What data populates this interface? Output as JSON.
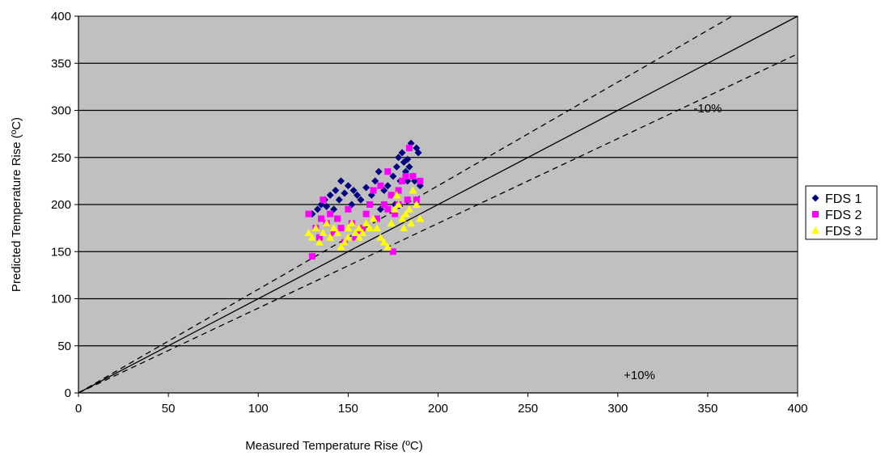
{
  "chart_data": {
    "type": "scatter",
    "xlabel": "Measured Temperature Rise (ºC)",
    "ylabel": "Predicted Temperature Rise (ºC)",
    "xlim": [
      0,
      400
    ],
    "ylim": [
      0,
      400
    ],
    "xticks": [
      0,
      50,
      100,
      150,
      200,
      250,
      300,
      350,
      400
    ],
    "yticks": [
      0,
      50,
      100,
      150,
      200,
      250,
      300,
      350,
      400
    ],
    "grid": "horizontal",
    "legend_position": "right",
    "plot_background": "#c0c0c0",
    "reference_lines": [
      {
        "label": "",
        "slope": 1.0,
        "style": "solid"
      },
      {
        "label": "+10%",
        "slope": 1.1,
        "style": "dashed"
      },
      {
        "label": "-10%",
        "slope": 0.9,
        "style": "dashed"
      }
    ],
    "series": [
      {
        "name": "FDS 1",
        "color": "#000080",
        "marker": "diamond",
        "points": [
          [
            130,
            190
          ],
          [
            133,
            195
          ],
          [
            135,
            200
          ],
          [
            137,
            205
          ],
          [
            138,
            198
          ],
          [
            140,
            210
          ],
          [
            142,
            195
          ],
          [
            143,
            215
          ],
          [
            145,
            205
          ],
          [
            146,
            225
          ],
          [
            148,
            212
          ],
          [
            150,
            220
          ],
          [
            152,
            200
          ],
          [
            155,
            210
          ],
          [
            157,
            205
          ],
          [
            160,
            218
          ],
          [
            163,
            210
          ],
          [
            165,
            225
          ],
          [
            167,
            235
          ],
          [
            170,
            215
          ],
          [
            172,
            220
          ],
          [
            174,
            210
          ],
          [
            175,
            230
          ],
          [
            177,
            240
          ],
          [
            178,
            250
          ],
          [
            180,
            255
          ],
          [
            181,
            245
          ],
          [
            182,
            235
          ],
          [
            183,
            248
          ],
          [
            184,
            240
          ],
          [
            185,
            265
          ],
          [
            186,
            230
          ],
          [
            187,
            225
          ],
          [
            188,
            260
          ],
          [
            189,
            255
          ],
          [
            190,
            220
          ],
          [
            176,
            200
          ],
          [
            179,
            225
          ],
          [
            183,
            225
          ],
          [
            170,
            200
          ],
          [
            168,
            195
          ],
          [
            153,
            215
          ]
        ]
      },
      {
        "name": "FDS 2",
        "color": "#ff00ff",
        "marker": "square",
        "points": [
          [
            128,
            190
          ],
          [
            130,
            145
          ],
          [
            132,
            175
          ],
          [
            134,
            165
          ],
          [
            135,
            185
          ],
          [
            136,
            205
          ],
          [
            138,
            180
          ],
          [
            140,
            190
          ],
          [
            142,
            170
          ],
          [
            144,
            185
          ],
          [
            146,
            175
          ],
          [
            148,
            160
          ],
          [
            150,
            195
          ],
          [
            152,
            180
          ],
          [
            154,
            165
          ],
          [
            156,
            170
          ],
          [
            158,
            175
          ],
          [
            160,
            190
          ],
          [
            162,
            200
          ],
          [
            164,
            215
          ],
          [
            166,
            185
          ],
          [
            168,
            220
          ],
          [
            170,
            200
          ],
          [
            172,
            235
          ],
          [
            174,
            210
          ],
          [
            175,
            150
          ],
          [
            176,
            190
          ],
          [
            178,
            200
          ],
          [
            180,
            225
          ],
          [
            182,
            230
          ],
          [
            184,
            260
          ],
          [
            186,
            230
          ],
          [
            188,
            205
          ],
          [
            190,
            225
          ],
          [
            172,
            195
          ],
          [
            178,
            215
          ],
          [
            183,
            205
          ]
        ]
      },
      {
        "name": "FDS 3",
        "color": "#ffff00",
        "marker": "triangle",
        "points": [
          [
            128,
            170
          ],
          [
            130,
            165
          ],
          [
            132,
            175
          ],
          [
            134,
            160
          ],
          [
            136,
            170
          ],
          [
            138,
            180
          ],
          [
            140,
            165
          ],
          [
            142,
            175
          ],
          [
            144,
            170
          ],
          [
            146,
            155
          ],
          [
            148,
            160
          ],
          [
            150,
            175
          ],
          [
            152,
            180
          ],
          [
            154,
            170
          ],
          [
            156,
            165
          ],
          [
            158,
            170
          ],
          [
            160,
            180
          ],
          [
            162,
            175
          ],
          [
            164,
            185
          ],
          [
            166,
            175
          ],
          [
            168,
            165
          ],
          [
            170,
            160
          ],
          [
            172,
            155
          ],
          [
            174,
            180
          ],
          [
            176,
            195
          ],
          [
            178,
            200
          ],
          [
            180,
            185
          ],
          [
            182,
            190
          ],
          [
            184,
            195
          ],
          [
            186,
            215
          ],
          [
            188,
            200
          ],
          [
            190,
            185
          ],
          [
            177,
            210
          ],
          [
            181,
            175
          ],
          [
            185,
            180
          ],
          [
            150,
            165
          ],
          [
            156,
            175
          ]
        ]
      }
    ]
  }
}
